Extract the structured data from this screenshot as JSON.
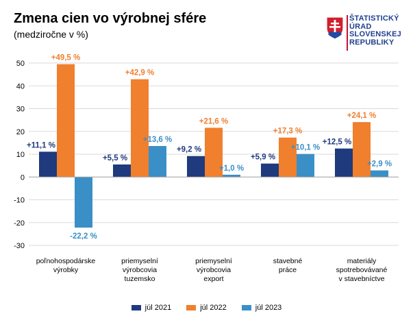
{
  "title": "Zmena cien vo výrobnej sfére",
  "subtitle": "(medziročne v %)",
  "logo": {
    "lines": [
      "ŠTATISTICKÝ",
      "ÚRAD",
      "SLOVENSKEJ",
      "REPUBLIKY"
    ],
    "emblem": "slovak-coat-of-arms-icon"
  },
  "colors": {
    "s2021": "#1f3a7d",
    "s2022": "#f07f2e",
    "s2023": "#3a8fc7"
  },
  "chart_data": {
    "type": "bar",
    "categories": [
      [
        "poľnohospodárske",
        "výrobky"
      ],
      [
        "priemyselní",
        "výrobcovia",
        "tuzemsko"
      ],
      [
        "priemyselní",
        "výrobcovia",
        "export"
      ],
      [
        "stavebné",
        "práce"
      ],
      [
        "materiály",
        "spotrebovávané",
        "v stavebníctve"
      ]
    ],
    "series": [
      {
        "name": "júl 2021",
        "values": [
          11.1,
          5.5,
          9.2,
          5.9,
          12.5
        ],
        "labels": [
          "+11,1 %",
          "+5,5 %",
          "+9,2 %",
          "+5,9 %",
          "+12,5 %"
        ]
      },
      {
        "name": "júl 2022",
        "values": [
          49.5,
          42.9,
          21.6,
          17.3,
          24.1
        ],
        "labels": [
          "+49,5 %",
          "+42,9 %",
          "+21,6 %",
          "+17,3 %",
          "+24,1 %"
        ]
      },
      {
        "name": "júl 2023",
        "values": [
          -22.2,
          13.6,
          1.0,
          10.1,
          2.9
        ],
        "labels": [
          "-22,2 %",
          "+13,6 %",
          "+1,0 %",
          "+10,1 %",
          "+2,9 %"
        ]
      }
    ],
    "ylim": [
      -30,
      50
    ],
    "yticks": [
      -30,
      -20,
      -10,
      0,
      10,
      20,
      30,
      40,
      50
    ],
    "grid": true,
    "legend_position": "bottom"
  }
}
